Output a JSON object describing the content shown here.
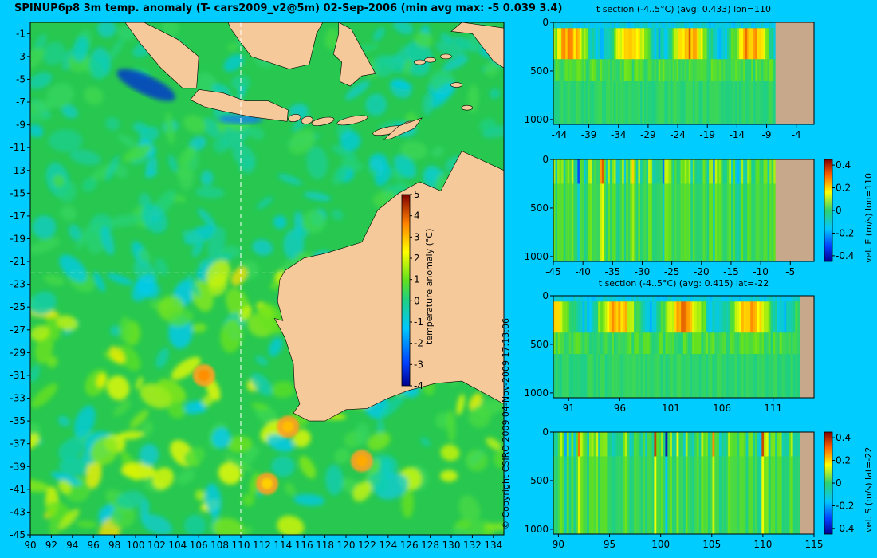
{
  "main_title": "SPINUP6p8 3m temp. anomaly (T- cars2009_v2@5m) 02-Sep-2006 (min avg max: -5 0.039 3.4)",
  "copyright": "© Copyright CSIRO 2009   04-Nov-2009 17:13:06",
  "colors": {
    "background": "#00ccff",
    "land": "#f5c99a",
    "section_land": "#c8a88a"
  },
  "chart_data": [
    {
      "type": "heatmap",
      "name": "temperature anomaly map",
      "x": [
        90,
        92,
        94,
        96,
        98,
        100,
        102,
        104,
        106,
        108,
        110,
        112,
        114,
        116,
        118,
        120,
        122,
        124,
        126,
        128,
        130,
        132,
        134
      ],
      "y": [
        -1,
        -3,
        -5,
        -7,
        -9,
        -11,
        -13,
        -15,
        -17,
        -19,
        -21,
        -23,
        -25,
        -27,
        -29,
        -31,
        -33,
        -35,
        -37,
        -39,
        -41,
        -43,
        -45
      ],
      "xlim": [
        90,
        135
      ],
      "ylim": [
        -45,
        0
      ],
      "colorbar": {
        "label": "temperature anomaly (°C)",
        "ticks": [
          5,
          4,
          3,
          2,
          1,
          0,
          -1,
          -2,
          -3,
          -4
        ],
        "range": [
          -4,
          5
        ]
      },
      "section_lines": {
        "lon": 110,
        "lat": -22
      },
      "warm_eddies": [
        {
          "lon": 106.5,
          "lat": -31,
          "value": 3.5
        },
        {
          "lon": 121.5,
          "lat": -38.5,
          "value": 3.2
        },
        {
          "lon": 114.5,
          "lat": -35.5,
          "value": 3.0
        },
        {
          "lon": 112.5,
          "lat": -40.5,
          "value": 2.8
        }
      ]
    },
    {
      "type": "heatmap",
      "name": "t section lon=110",
      "title": "t section (-4..5°C) (avg: 0.433) lon=110",
      "x_ticks": [
        -44,
        -39,
        -34,
        -29,
        -24,
        -19,
        -14,
        -9,
        -4
      ],
      "y_ticks": [
        0,
        500,
        1000
      ],
      "xlim": [
        -45,
        -1
      ],
      "ylim": [
        1050,
        0
      ],
      "land_from": -7.5
    },
    {
      "type": "heatmap",
      "name": "vel. E section lon=110",
      "x_ticks": [
        -45,
        -40,
        -35,
        -30,
        -25,
        -20,
        -15,
        -10,
        -5
      ],
      "y_ticks": [
        0,
        500,
        1000
      ],
      "xlim": [
        -45,
        -1
      ],
      "ylim": [
        1050,
        0
      ],
      "land_from": -7.5,
      "colorbar": {
        "label": "vel. E (m/s) lon=110",
        "ticks": [
          0.4,
          0.2,
          0,
          -0.2,
          -0.4
        ],
        "range": [
          -0.45,
          0.45
        ]
      }
    },
    {
      "type": "heatmap",
      "name": "t section lat=-22",
      "title": "t section (-4..5°C) (avg: 0.415) lat=-22",
      "x_ticks": [
        91,
        96,
        101,
        106,
        111
      ],
      "y_ticks": [
        0,
        500,
        1000
      ],
      "xlim": [
        89.5,
        115
      ],
      "ylim": [
        1050,
        0
      ],
      "land_from": 113.6
    },
    {
      "type": "heatmap",
      "name": "vel. S section lat=-22",
      "x_ticks": [
        90,
        95,
        100,
        105,
        110,
        115
      ],
      "y_ticks": [
        0,
        500,
        1000
      ],
      "xlim": [
        89.5,
        115
      ],
      "ylim": [
        1050,
        0
      ],
      "land_from": 113.6,
      "colorbar": {
        "label": "vel. S (m/s) lat=-22",
        "ticks": [
          0.4,
          0.2,
          0,
          -0.2,
          -0.4
        ],
        "range": [
          -0.45,
          0.45
        ]
      }
    }
  ]
}
